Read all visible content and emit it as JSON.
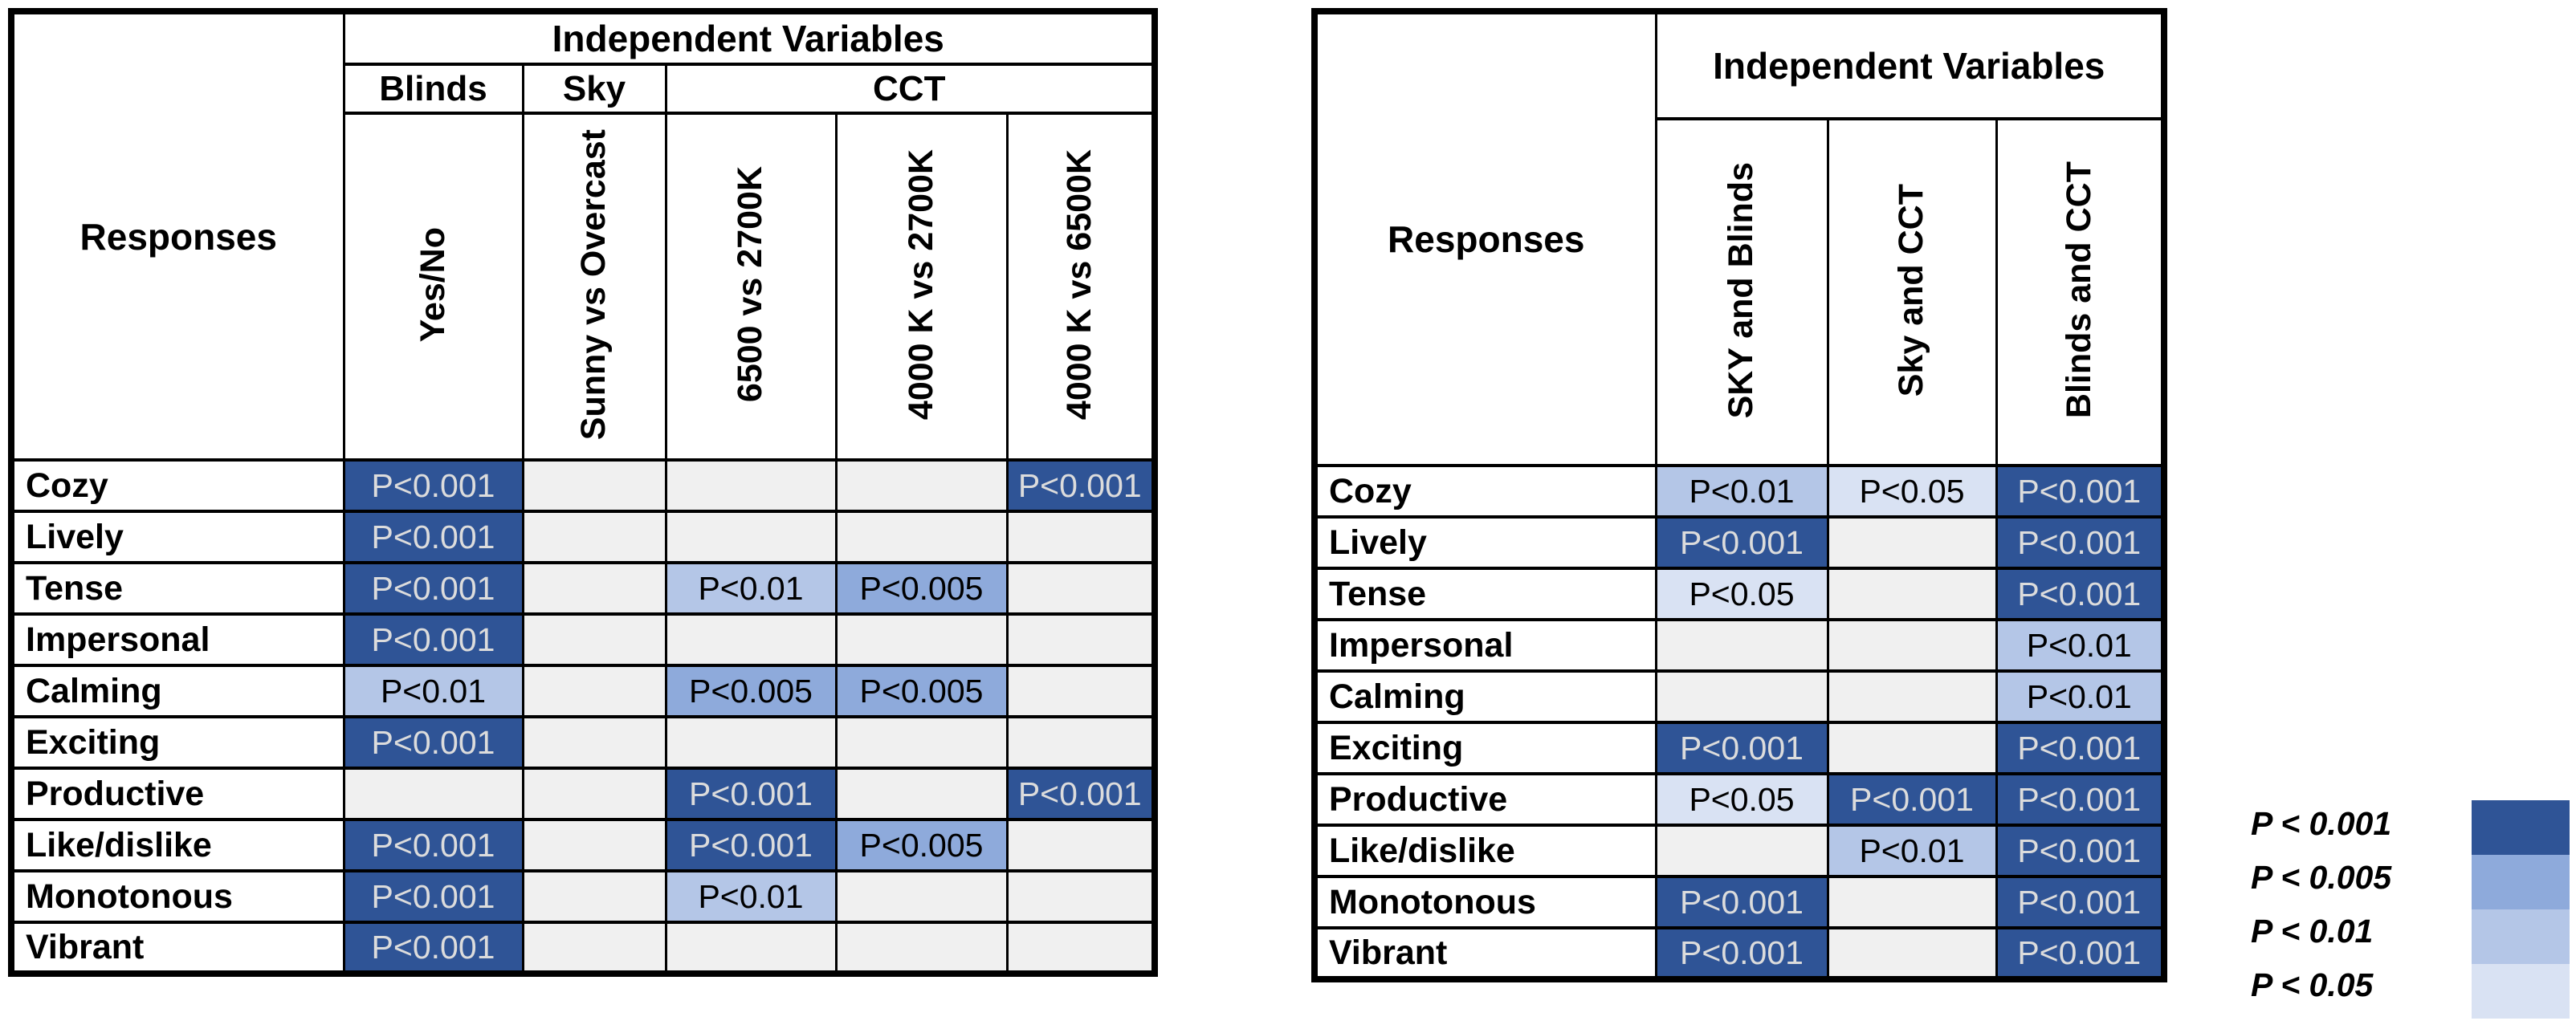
{
  "colors": {
    "p001": "#2F5496",
    "p005": "#8EAADB",
    "p01": "#B4C6E7",
    "p05": "#D9E2F3",
    "empty": "#F0F0F0",
    "dark_cell_text": "#DCDCDC",
    "grid": "#000000"
  },
  "chart_data": [
    {
      "type": "heatmap",
      "title": "Independent Variables",
      "row_header": "Responses",
      "col_groups": [
        {
          "label": "Blinds",
          "span": 1
        },
        {
          "label": "Sky",
          "span": 1
        },
        {
          "label": "CCT",
          "span": 3
        }
      ],
      "columns": [
        "Yes/No",
        "Sunny vs Overcast",
        "6500 vs 2700K",
        "4000 K vs 2700K",
        "4000 K vs 6500K"
      ],
      "rows": [
        "Cozy",
        "Lively",
        "Tense",
        "Impersonal",
        "Calming",
        "Exciting",
        "Productive",
        "Like/dislike",
        "Monotonous",
        "Vibrant"
      ],
      "cells": [
        [
          {
            "text": "P<0.001",
            "level": "p001"
          },
          null,
          null,
          null,
          {
            "text": "P<0.001",
            "level": "p001"
          }
        ],
        [
          {
            "text": "P<0.001",
            "level": "p001"
          },
          null,
          null,
          null,
          null
        ],
        [
          {
            "text": "P<0.001",
            "level": "p001"
          },
          null,
          {
            "text": "P<0.01",
            "level": "p01"
          },
          {
            "text": "P<0.005",
            "level": "p005"
          },
          null
        ],
        [
          {
            "text": "P<0.001",
            "level": "p001"
          },
          null,
          null,
          null,
          null
        ],
        [
          {
            "text": "P<0.01",
            "level": "p01"
          },
          null,
          {
            "text": "P<0.005",
            "level": "p005"
          },
          {
            "text": "P<0.005",
            "level": "p005"
          },
          null
        ],
        [
          {
            "text": "P<0.001",
            "level": "p001"
          },
          null,
          null,
          null,
          null
        ],
        [
          null,
          null,
          {
            "text": "P<0.001",
            "level": "p001"
          },
          null,
          {
            "text": "P<0.001",
            "level": "p001"
          }
        ],
        [
          {
            "text": "P<0.001",
            "level": "p001"
          },
          null,
          {
            "text": "P<0.001",
            "level": "p001"
          },
          {
            "text": "P<0.005",
            "level": "p005"
          },
          null
        ],
        [
          {
            "text": "P<0.001",
            "level": "p001"
          },
          null,
          {
            "text": "P<0.01",
            "level": "p01"
          },
          null,
          null
        ],
        [
          {
            "text": "P<0.001",
            "level": "p001"
          },
          null,
          null,
          null,
          null
        ]
      ]
    },
    {
      "type": "heatmap",
      "title": "Independent Variables",
      "row_header": "Responses",
      "columns": [
        "SKY and Blinds",
        "Sky and CCT",
        "Blinds and CCT"
      ],
      "rows": [
        "Cozy",
        "Lively",
        "Tense",
        "Impersonal",
        "Calming",
        "Exciting",
        "Productive",
        "Like/dislike",
        "Monotonous",
        "Vibrant"
      ],
      "cells": [
        [
          {
            "text": "P<0.01",
            "level": "p01"
          },
          {
            "text": "P<0.05",
            "level": "p05"
          },
          {
            "text": "P<0.001",
            "level": "p001"
          }
        ],
        [
          {
            "text": "P<0.001",
            "level": "p001"
          },
          null,
          {
            "text": "P<0.001",
            "level": "p001"
          }
        ],
        [
          {
            "text": "P<0.05",
            "level": "p05"
          },
          null,
          {
            "text": "P<0.001",
            "level": "p001"
          }
        ],
        [
          null,
          null,
          {
            "text": "P<0.01",
            "level": "p01"
          }
        ],
        [
          null,
          null,
          {
            "text": "P<0.01",
            "level": "p01"
          }
        ],
        [
          {
            "text": "P<0.001",
            "level": "p001"
          },
          null,
          {
            "text": "P<0.001",
            "level": "p001"
          }
        ],
        [
          {
            "text": "P<0.05",
            "level": "p05"
          },
          {
            "text": "P<0.001",
            "level": "p001"
          },
          {
            "text": "P<0.001",
            "level": "p001"
          }
        ],
        [
          null,
          {
            "text": "P<0.01",
            "level": "p01"
          },
          {
            "text": "P<0.001",
            "level": "p001"
          }
        ],
        [
          {
            "text": "P<0.001",
            "level": "p001"
          },
          null,
          {
            "text": "P<0.001",
            "level": "p001"
          }
        ],
        [
          {
            "text": "P<0.001",
            "level": "p001"
          },
          null,
          {
            "text": "P<0.001",
            "level": "p001"
          }
        ]
      ]
    }
  ],
  "legend": {
    "entries": [
      {
        "label": "P < 0.001",
        "color": "#2F5496"
      },
      {
        "label": "P < 0.005",
        "color": "#8EAADB"
      },
      {
        "label": "P < 0.01",
        "color": "#B4C6E7"
      },
      {
        "label": "P < 0.05",
        "color": "#D9E2F3"
      }
    ]
  }
}
